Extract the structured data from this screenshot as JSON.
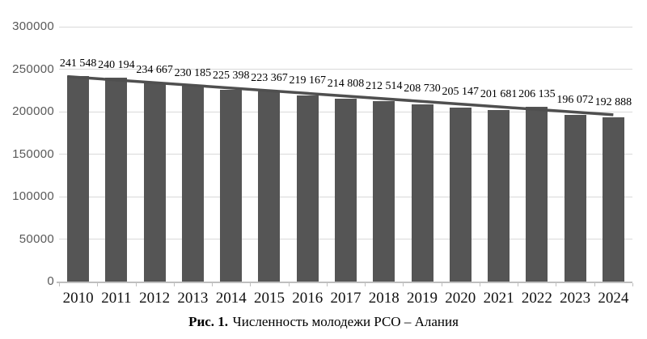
{
  "chart_data": {
    "type": "bar",
    "title": "",
    "xlabel": "",
    "ylabel": "",
    "categories": [
      "2010",
      "2011",
      "2012",
      "2013",
      "2014",
      "2015",
      "2016",
      "2017",
      "2018",
      "2019",
      "2020",
      "2021",
      "2022",
      "2023",
      "2024"
    ],
    "values": [
      241548,
      240194,
      234667,
      230185,
      225398,
      223367,
      219167,
      214808,
      212514,
      208730,
      205147,
      201681,
      206135,
      196072,
      192888
    ],
    "value_labels": [
      "241 548",
      "240 194",
      "234 667",
      "230 185",
      "225 398",
      "223 367",
      "219 167",
      "214 808",
      "212 514",
      "208 730",
      "205 147",
      "201 681",
      "206 135",
      "196 072",
      "192 888"
    ],
    "ylim": [
      0,
      300000
    ],
    "ytick_step": 50000,
    "ytick_labels": [
      "0",
      "50000",
      "100000",
      "150000",
      "200000",
      "250000",
      "300000"
    ],
    "grid": true,
    "legend": "none",
    "trendline": {
      "type": "linear",
      "start_value": 241300,
      "end_value": 196300
    },
    "colors": {
      "bar": "#555555",
      "trendline": "#4f4f4f",
      "gridline": "#d9d9d9",
      "axis_line": "#bfbfbf",
      "tick_mark": "#bfbfbf",
      "ytick_label": "#595959",
      "data_label": "#000000",
      "xtick_label": "#111111"
    }
  },
  "caption": {
    "prefix": "Рис. 1.",
    "title": "Численность молодежи РСО – Алания"
  }
}
